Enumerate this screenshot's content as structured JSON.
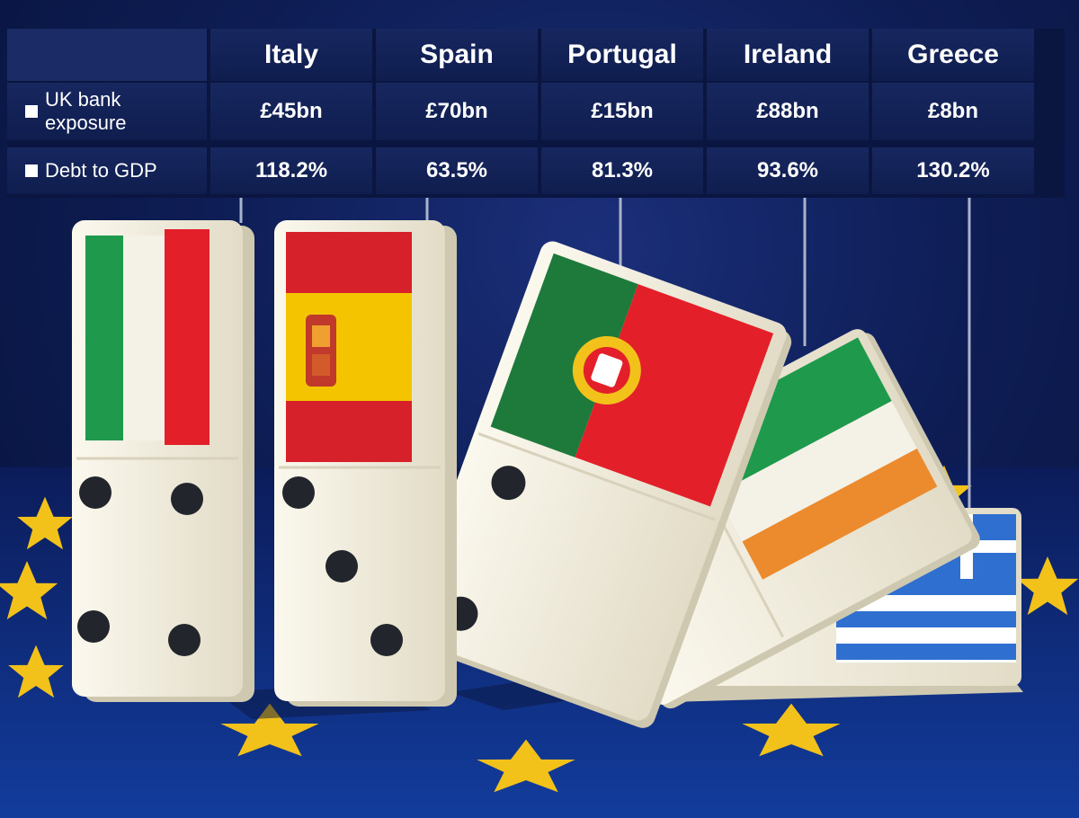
{
  "table": {
    "countries": [
      "Italy",
      "Spain",
      "Portugal",
      "Ireland",
      "Greece"
    ],
    "rows": [
      {
        "label": "UK bank exposure",
        "values": [
          "£45bn",
          "£70bn",
          "£15bn",
          "£88bn",
          "£8bn"
        ]
      },
      {
        "label": "Debt to GDP",
        "values": [
          "118.2%",
          "63.5%",
          "81.3%",
          "93.6%",
          "130.2%"
        ]
      }
    ]
  },
  "colors": {
    "eu_blue": "#0e1d55",
    "star_gold": "#f2c21b",
    "domino_ivory": "#f3efe2"
  },
  "icons": [
    "eu-star-icon",
    "spanish-coat-of-arms-icon",
    "portuguese-coat-of-arms-icon",
    "greek-cross-icon"
  ]
}
